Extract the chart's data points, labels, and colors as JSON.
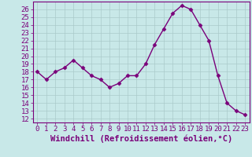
{
  "x": [
    0,
    1,
    2,
    3,
    4,
    5,
    6,
    7,
    8,
    9,
    10,
    11,
    12,
    13,
    14,
    15,
    16,
    17,
    18,
    19,
    20,
    21,
    22,
    23
  ],
  "y": [
    18.0,
    17.0,
    18.0,
    18.5,
    19.5,
    18.5,
    17.5,
    17.0,
    16.0,
    16.5,
    17.5,
    17.5,
    19.0,
    21.5,
    23.5,
    25.5,
    26.5,
    26.0,
    24.0,
    22.0,
    17.5,
    14.0,
    13.0,
    12.5
  ],
  "line_color": "#7a007a",
  "marker": "D",
  "marker_size": 2.5,
  "bg_color": "#c8e8e8",
  "grid_color": "#aacaca",
  "xlabel": "Windchill (Refroidissement éolien,°C)",
  "ylabel_ticks": [
    12,
    13,
    14,
    15,
    16,
    17,
    18,
    19,
    20,
    21,
    22,
    23,
    24,
    25,
    26
  ],
  "ylim": [
    11.5,
    27
  ],
  "xlim": [
    -0.5,
    23.5
  ],
  "tick_label_size": 6.5,
  "xlabel_size": 7.5,
  "line_width": 1.0
}
